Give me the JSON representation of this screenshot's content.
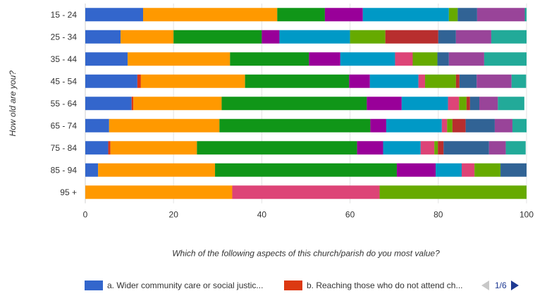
{
  "chart_data": {
    "type": "bar",
    "orientation": "horizontal",
    "stacked": true,
    "categories": [
      "15 - 24",
      "25 - 34",
      "35 - 44",
      "45 - 54",
      "55 - 64",
      "65 - 74",
      "75 - 84",
      "85 - 94",
      "95 +"
    ],
    "xlabel": "Which of the following aspects of this church/parish do you most value?",
    "ylabel": "How old are you?",
    "xlim": [
      0,
      100
    ],
    "xticks": [
      "0",
      "20",
      "40",
      "60",
      "80",
      "100"
    ],
    "grid": true,
    "legend_position": "bottom",
    "series": [
      {
        "name": "a. Wider community care or social justice",
        "color": "#3366cc",
        "values": [
          13.1,
          8.0,
          9.6,
          11.8,
          10.5,
          5.4,
          5.2,
          2.9,
          0
        ]
      },
      {
        "name": "b. Reaching those who do not attend church",
        "color": "#dc3912",
        "values": [
          0,
          0,
          0,
          0.8,
          0.4,
          0,
          0.5,
          0,
          0
        ]
      },
      {
        "color": "#ff9900",
        "values": [
          30.4,
          12.0,
          23.2,
          23.6,
          20.0,
          25.0,
          19.6,
          26.5,
          33.3
        ]
      },
      {
        "color": "#109618",
        "values": [
          10.8,
          20.0,
          17.9,
          23.6,
          32.9,
          34.2,
          36.3,
          41.2,
          0
        ]
      },
      {
        "color": "#990099",
        "values": [
          8.6,
          4.0,
          7.1,
          4.7,
          7.9,
          3.6,
          5.9,
          8.8,
          0
        ]
      },
      {
        "color": "#0099c6",
        "values": [
          19.5,
          16.0,
          12.4,
          11.0,
          10.5,
          12.6,
          8.5,
          5.9,
          0
        ]
      },
      {
        "color": "#dd4477",
        "values": [
          0,
          0,
          4.0,
          1.5,
          2.5,
          1.2,
          3.1,
          2.9,
          33.4
        ]
      },
      {
        "color": "#66aa00",
        "values": [
          2.0,
          8.0,
          5.6,
          7.0,
          1.7,
          1.2,
          0.8,
          5.9,
          33.3
        ]
      },
      {
        "color": "#b82e2e",
        "values": [
          0,
          12.0,
          0,
          0.8,
          0.8,
          3.0,
          1.3,
          0,
          0
        ]
      },
      {
        "color": "#316395",
        "values": [
          4.4,
          4.0,
          2.6,
          3.9,
          2.1,
          6.6,
          10.3,
          5.9,
          0
        ]
      },
      {
        "color": "#994499",
        "values": [
          10.8,
          8.0,
          8.0,
          7.9,
          4.2,
          4.0,
          3.8,
          0,
          0
        ]
      },
      {
        "color": "#22aa99",
        "values": [
          0.4,
          8.0,
          9.6,
          3.3,
          6.0,
          3.2,
          4.5,
          0,
          0
        ]
      }
    ]
  },
  "legend": {
    "items": [
      {
        "label": "a. Wider community care or social justic...",
        "color": "#3366cc"
      },
      {
        "label": "b. Reaching those who do not attend ch...",
        "color": "#dc3912"
      }
    ],
    "page": "1/6"
  }
}
